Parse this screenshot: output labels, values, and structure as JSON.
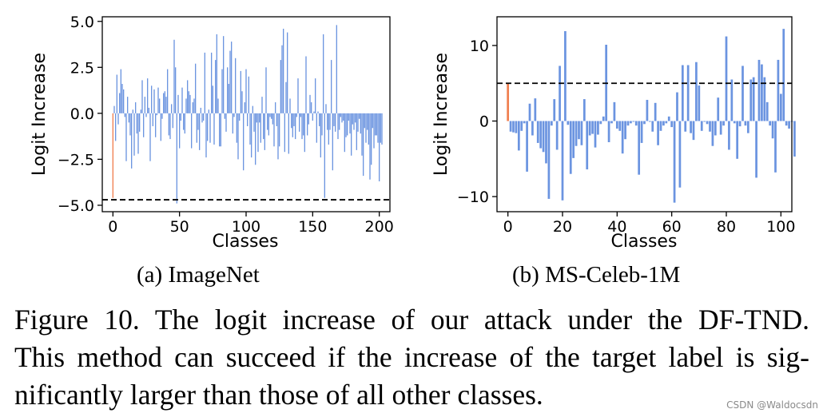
{
  "chart_data": [
    {
      "type": "bar",
      "name": "imagenet",
      "ylabel": "Logit Increase",
      "xlabel": "Classes",
      "xlim": [
        -8,
        208
      ],
      "ylim": [
        -5.35,
        5.25
      ],
      "xticks": [
        0,
        50,
        100,
        150,
        200
      ],
      "xtick_labels": [
        "0",
        "50",
        "100",
        "150",
        "200"
      ],
      "yticks": [
        5.0,
        2.5,
        0.0,
        -2.5,
        -5.0
      ],
      "ytick_labels": [
        "5.0",
        "2.5",
        "0.0",
        "−2.5",
        "−5.0"
      ],
      "threshold": -4.7,
      "target_index": 0,
      "target_color": "#f07f4f",
      "bar_color": "#6b94e0",
      "values": [
        -4.6,
        0.4,
        -1.5,
        2.1,
        -0.6,
        1.1,
        2.4,
        1.6,
        1.3,
        -0.2,
        -2.6,
        0.9,
        -0.5,
        -1.2,
        -3.0,
        0.2,
        -2.3,
        0.6,
        -1.1,
        -2.2,
        -1.0,
        0.2,
        1.8,
        -1.3,
        0.9,
        -0.2,
        1.9,
        0.3,
        -2.6,
        1.5,
        -0.7,
        1.3,
        -1.3,
        -0.1,
        1.4,
        0.8,
        -1.5,
        -0.3,
        1.1,
        1.2,
        0.9,
        2.4,
        -1.2,
        -1.4,
        0.5,
        -0.8,
        4.0,
        2.5,
        -4.9,
        1.0,
        -1.9,
        -0.4,
        1.4,
        -0.9,
        -1.1,
        0.8,
        1.8,
        1.2,
        1.0,
        -1.9,
        0.6,
        0.8,
        2.7,
        -1.6,
        -0.9,
        -2.0,
        0.3,
        -0.5,
        -0.4,
        3.3,
        -2.4,
        -1.5,
        0.2,
        -1.6,
        3.3,
        1.5,
        -1.7,
        2.9,
        4.3,
        0.8,
        -1.8,
        -1.8,
        2.4,
        4.2,
        -0.3,
        -1.0,
        2.5,
        1.6,
        3.4,
        3.9,
        -1.1,
        -0.2,
        3.0,
        -1.6,
        -2.5,
        -0.4,
        2.3,
        1.2,
        -3.1,
        0.6,
        2.4,
        -0.7,
        2.0,
        -1.7,
        -2.4,
        0.4,
        -1.0,
        -2.8,
        -0.5,
        -2.1,
        -0.5,
        -1.6,
        0.9,
        -1.4,
        -2.0,
        2.5,
        -0.9,
        -1.2,
        -0.2,
        -0.3,
        -0.6,
        -1.8,
        0.6,
        -0.7,
        -2.5,
        -1.8,
        2.9,
        3.7,
        4.6,
        -2.1,
        1.7,
        4.4,
        -2.2,
        0.8,
        -0.8,
        -1.3,
        -0.7,
        -1.4,
        -0.2,
        1.9,
        -1.0,
        -0.2,
        -1.4,
        -1.2,
        -2.1,
        3.1,
        -1.2,
        -0.6,
        1.0,
        0.6,
        -0.4,
        0.1,
        1.9,
        -1.6,
        0.1,
        -0.7,
        -2.4,
        -1.2,
        4.3,
        -4.6,
        0.5,
        -0.9,
        -1.7,
        -0.9,
        2.9,
        -3.1,
        -0.7,
        -1.0,
        4.8,
        -1.4,
        -0.9,
        -0.2,
        -0.5,
        -0.4,
        -2.1,
        -1.3,
        -1.2,
        -0.4,
        -1.1,
        -2.3,
        -0.6,
        -0.9,
        -0.5,
        -2.0,
        -1.0,
        -0.3,
        -1.1,
        -2.3,
        -3.4,
        -0.8,
        -1.6,
        -0.9,
        -1.7,
        -3.6,
        -2.8,
        -0.8,
        -1.9,
        -1.2,
        -1.2,
        -1.6,
        -3.7,
        -1.6,
        -1.7
      ]
    },
    {
      "type": "bar",
      "name": "ms-celeb",
      "ylabel": "Logit Increase",
      "xlabel": "Classes",
      "xlim": [
        -4,
        104
      ],
      "ylim": [
        -12.0,
        13.8
      ],
      "xticks": [
        0,
        20,
        40,
        60,
        80,
        100
      ],
      "xtick_labels": [
        "0",
        "20",
        "40",
        "60",
        "80",
        "100"
      ],
      "yticks": [
        10,
        0,
        -10
      ],
      "ytick_labels": [
        "10",
        "0",
        "−10"
      ],
      "threshold": 5.0,
      "target_index": 0,
      "target_color": "#f07f4f",
      "bar_color": "#6b94e0",
      "values": [
        5.0,
        -1.4,
        -1.5,
        -1.6,
        -3.9,
        -1.3,
        -0.3,
        -6.7,
        2.3,
        -1.9,
        3.0,
        -2.9,
        -3.6,
        -4.1,
        -5.6,
        -10.3,
        -0.6,
        2.9,
        -3.8,
        7.3,
        -10.5,
        11.9,
        -0.5,
        -7.0,
        -4.9,
        -3.3,
        -2.4,
        -3.2,
        2.9,
        -6.4,
        -1.9,
        -1.7,
        -3.5,
        -1.8,
        -0.4,
        0.6,
        10.1,
        -2.8,
        -0.3,
        2.5,
        -1.0,
        -1.3,
        -4.3,
        -2.4,
        -0.6,
        -0.3,
        -0.1,
        -0.6,
        -7.1,
        -2.9,
        -0.4,
        2.8,
        -0.1,
        -1.4,
        2.4,
        -3.2,
        -1.3,
        -0.6,
        -0.3,
        0.6,
        -0.8,
        -10.8,
        3.8,
        -8.8,
        7.4,
        -1.4,
        7.4,
        -1.6,
        -2.5,
        7.8,
        4.7,
        -1.3,
        -0.1,
        -0.4,
        -1.4,
        -3.3,
        -1.9,
        3.1,
        -1.8,
        -0.6,
        11.2,
        -3.8,
        5.5,
        -0.3,
        -5.0,
        -0.7,
        7.3,
        -0.6,
        -1.6,
        5.5,
        5.8,
        -7.5,
        8.1,
        7.5,
        5.8,
        2.5,
        -0.6,
        -2.3,
        -6.8,
        8.1,
        3.6,
        12.2,
        -0.6,
        -1.0,
        -0.1,
        -4.7
      ]
    }
  ],
  "subcaptions": {
    "a_label": "(a)",
    "a_name": "ImageNet",
    "b_label": "(b)",
    "b_name": "MS-Celeb-1M"
  },
  "caption": {
    "line1": "Figure 10. The logit increase of our attack under the DF-TND.",
    "line2": "This method can succeed if the increase of the target label is sig-",
    "line3": "nificantly larger than those of all other classes."
  },
  "watermark": "CSDN @Waldocsdn"
}
